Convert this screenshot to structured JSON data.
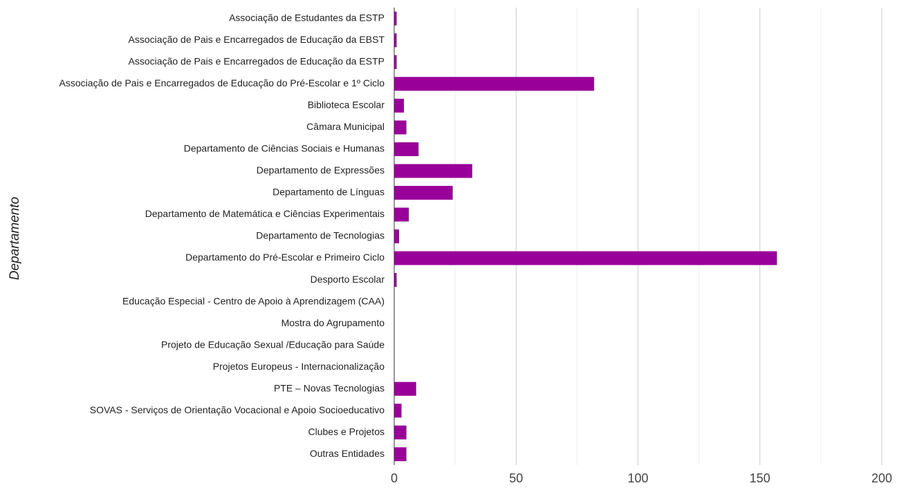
{
  "chart_data": {
    "type": "bar",
    "orientation": "horizontal",
    "ylabel": "Departamento",
    "categories": [
      "Associação de Estudantes da ESTP",
      "Associação de Pais e Encarregados de Educação da EBST",
      "Associação de Pais e Encarregados de Educação da ESTP",
      "Associação de Pais e Encarregados de Educação do Pré-Escolar e 1º Ciclo",
      "Biblioteca Escolar",
      "Câmara Municipal",
      "Departamento de Ciências Sociais e Humanas",
      "Departamento de Expressões",
      "Departamento de Línguas",
      "Departamento de Matemática e Ciências Experimentais",
      "Departamento de Tecnologias",
      "Departamento do Pré-Escolar e Primeiro Ciclo",
      "Desporto Escolar",
      "Educação Especial - Centro de Apoio à Aprendizagem (CAA)",
      "Mostra do Agrupamento",
      "Projeto de Educação Sexual /Educação para Saúde",
      "Projetos Europeus - Internacionalização",
      "PTE – Novas Tecnologias",
      "SOVAS - Serviços de Orientação Vocacional e Apoio Socioeducativo",
      "Clubes e Projetos",
      "Outras Entidades"
    ],
    "values": [
      1,
      1,
      1,
      82,
      4,
      5,
      10,
      32,
      24,
      6,
      2,
      157,
      1,
      0,
      0,
      0,
      0,
      9,
      3,
      5,
      5
    ],
    "color": "#990099",
    "xlim": [
      0,
      200
    ],
    "xticks": [
      0,
      50,
      100,
      150,
      200
    ],
    "minor_xticks": [
      25,
      75,
      125,
      175
    ],
    "grid": true
  }
}
